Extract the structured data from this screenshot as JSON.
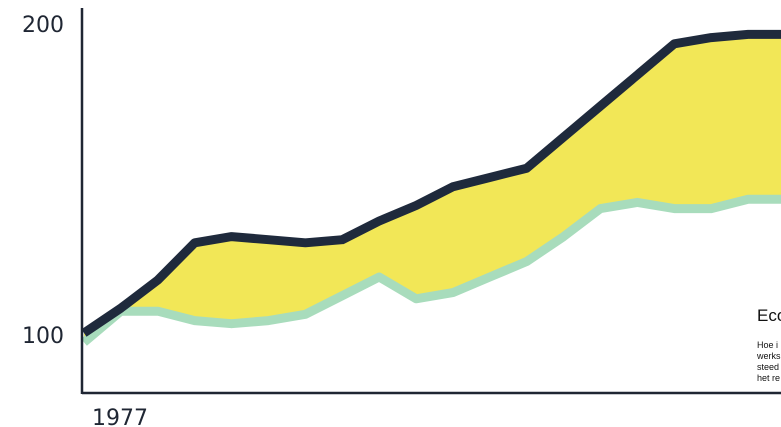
{
  "chart_data": {
    "type": "area",
    "y_ticks": [
      "200",
      "100"
    ],
    "x_ticks": [
      "1977"
    ],
    "ylim": [
      95,
      200
    ],
    "xlim": [
      0,
      19
    ],
    "colors": {
      "upper_line": "#1f2a3c",
      "lower_line": "#a8dcbc",
      "fill": "#f2e757",
      "axis": "#1f2633"
    },
    "x": [
      0,
      1,
      2,
      3,
      4,
      5,
      6,
      7,
      8,
      9,
      10,
      11,
      12,
      13,
      14,
      15,
      16,
      17,
      18,
      19
    ],
    "series": [
      {
        "values": [
          100,
          108,
          117,
          129,
          131,
          130,
          129,
          130,
          136,
          141,
          147,
          150,
          153,
          163,
          173,
          183,
          193,
          195,
          196,
          196
        ]
      },
      {
        "values": [
          97,
          107,
          107,
          104,
          103,
          104,
          106,
          112,
          118,
          111,
          113,
          118,
          123,
          131,
          140,
          142,
          140,
          140,
          143,
          143
        ]
      }
    ]
  },
  "panel": {
    "title": "Eco",
    "lines": [
      "Hoe i",
      "werks",
      "steed",
      "het re"
    ]
  }
}
